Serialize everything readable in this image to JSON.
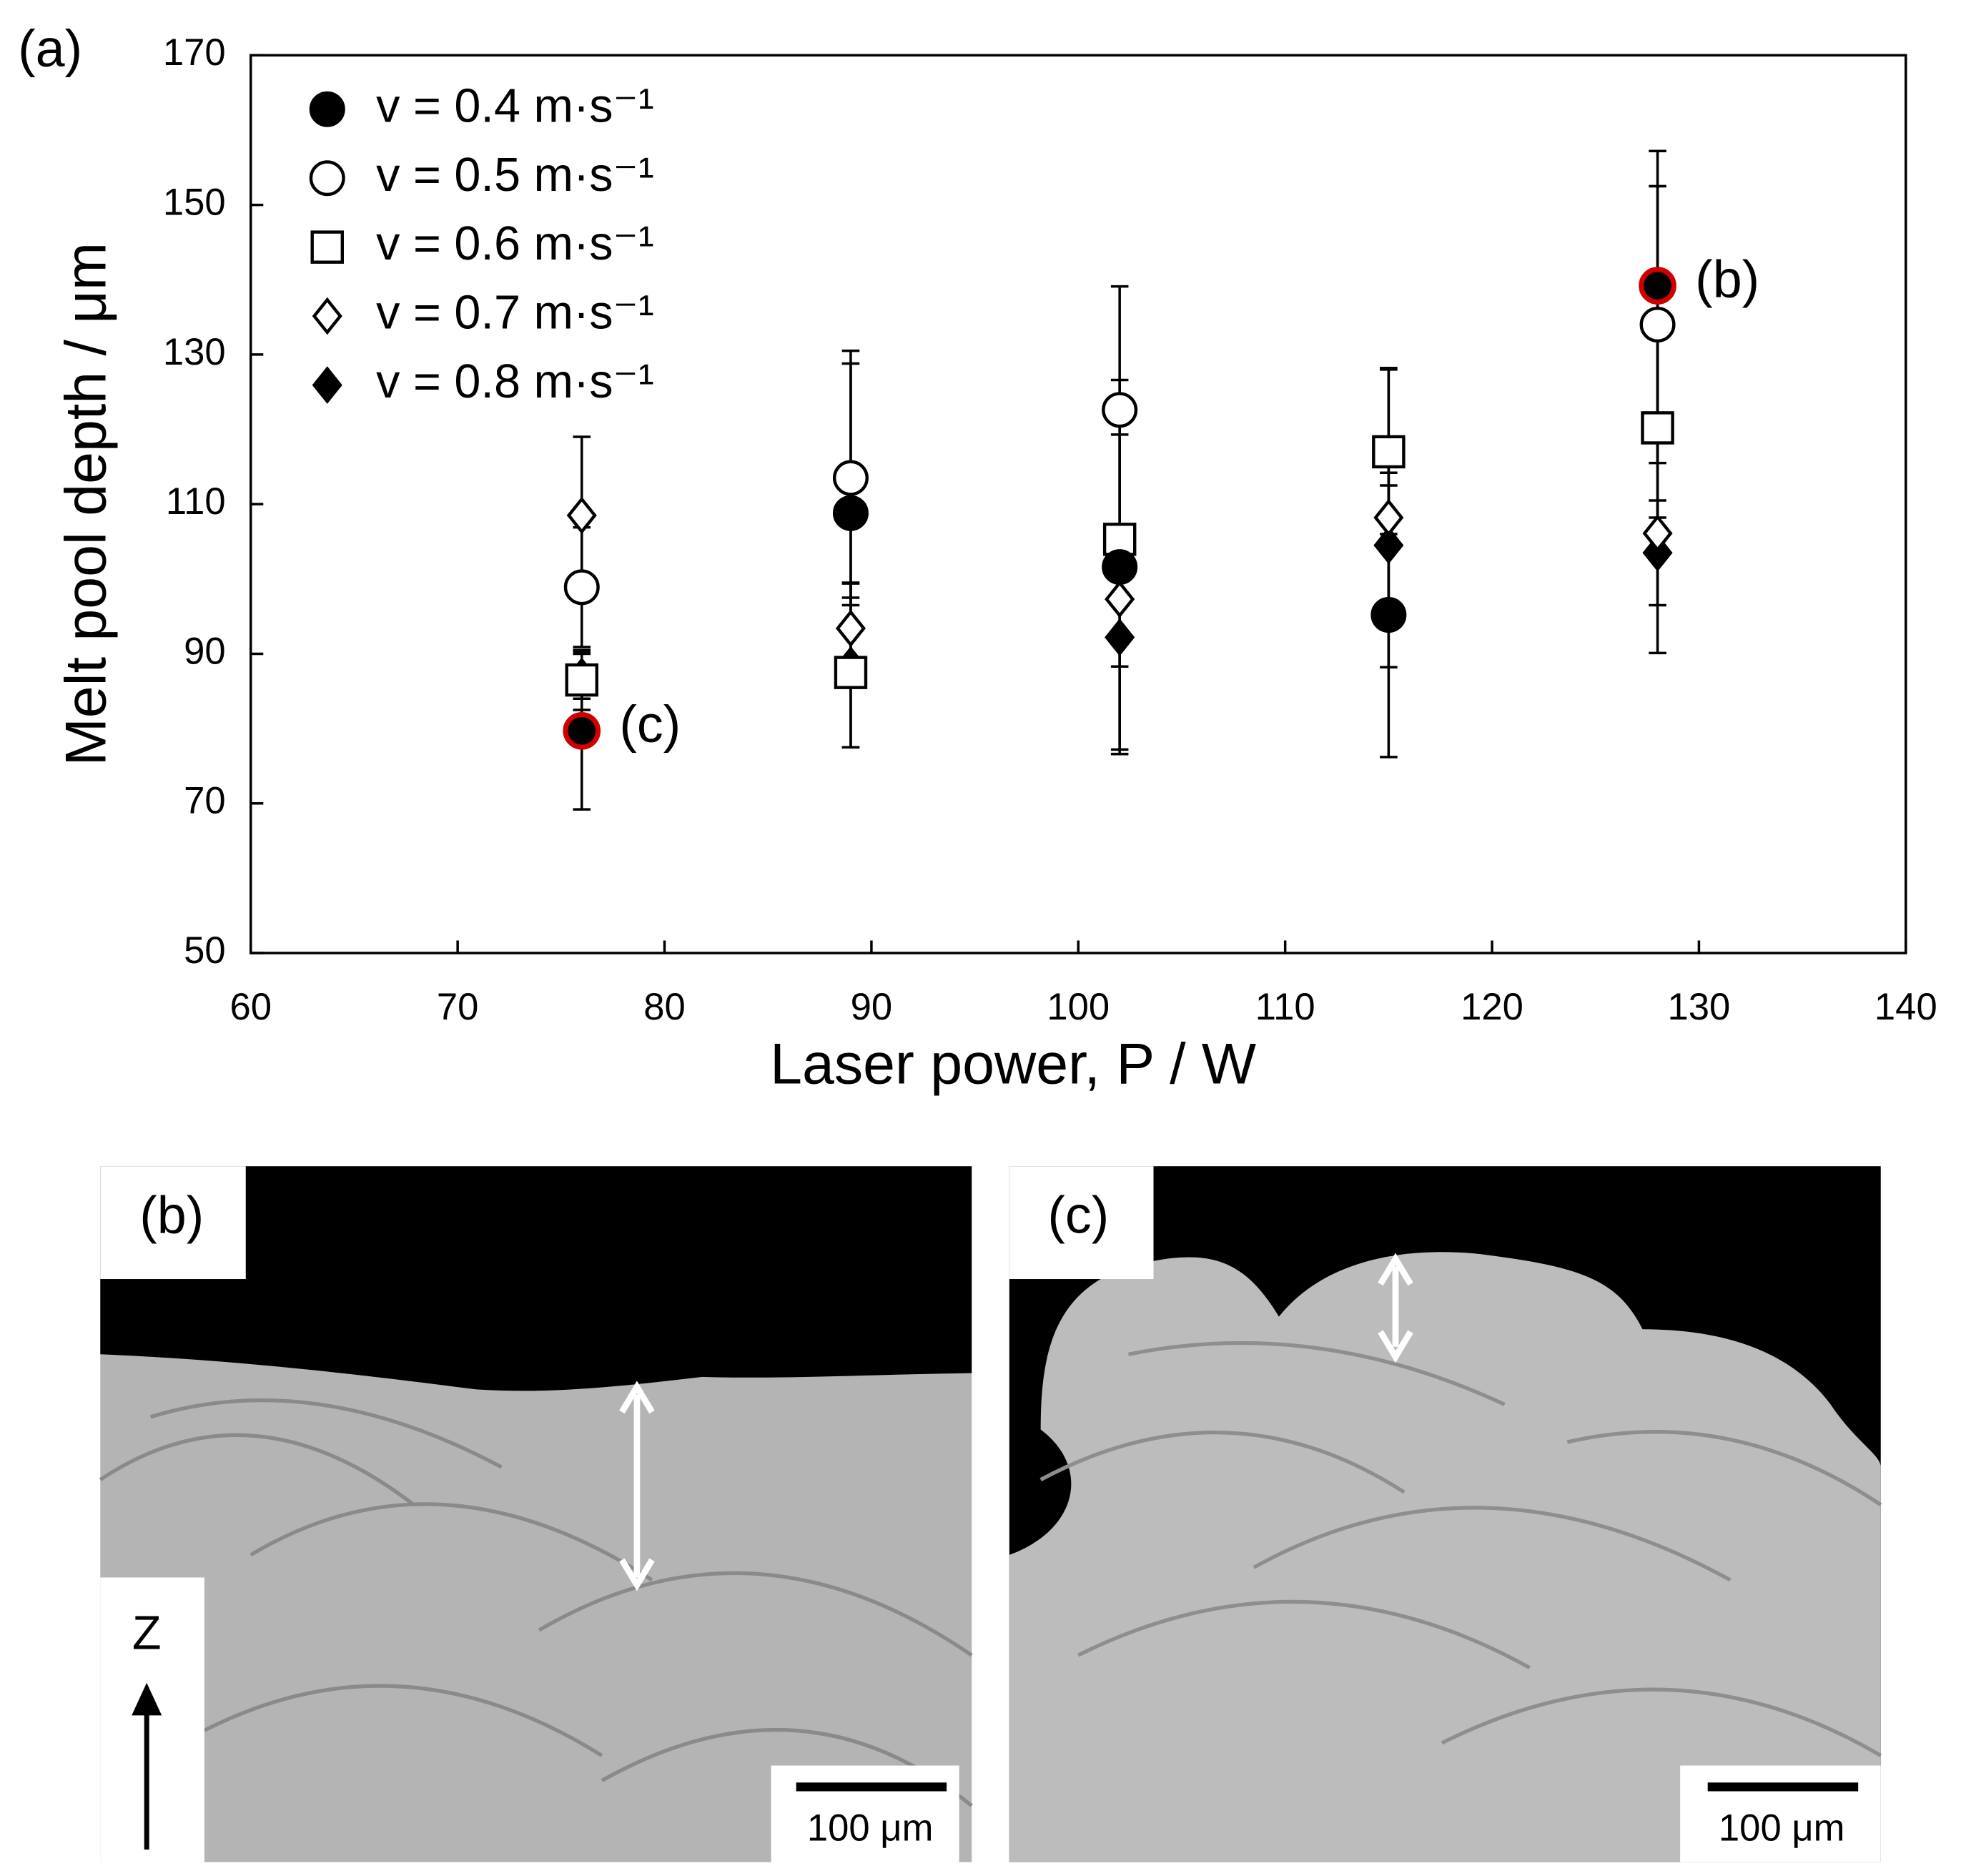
{
  "chart_data": {
    "type": "scatter",
    "panel_label": "(a)",
    "x_label": "Laser power, P / W",
    "y_label": "Melt pool depth / μm",
    "xlim": [
      60,
      140
    ],
    "xticks": [
      60,
      70,
      80,
      90,
      100,
      110,
      120,
      130,
      140
    ],
    "ylim": [
      50,
      170
    ],
    "yticks": [
      50,
      70,
      90,
      110,
      130,
      150,
      170
    ],
    "grid": false,
    "legend": "upper left",
    "x": [
      76,
      89,
      102,
      115,
      128
    ],
    "series": [
      {
        "name": "v = 0.4 m·s⁻¹",
        "marker": "circle",
        "filled": true,
        "values": [
          79.7,
          108.8,
          101.6,
          95.2,
          139.2
        ],
        "errors": [
          10.5,
          20,
          25,
          19,
          18
        ]
      },
      {
        "name": "v = 0.5 m·s⁻¹",
        "marker": "circle",
        "filled": false,
        "values": [
          98.9,
          113.5,
          122.6,
          null,
          134
        ],
        "errors": [
          8,
          17,
          16.5,
          null,
          18.5
        ]
      },
      {
        "name": "v = 0.6 m·s⁻¹",
        "marker": "square",
        "filled": false,
        "values": [
          86.5,
          87.5,
          105.3,
          117,
          120.2
        ],
        "errors": [
          4,
          10,
          14,
          11,
          12
        ]
      },
      {
        "name": "v = 0.7 m·s⁻¹",
        "marker": "diamond",
        "filled": false,
        "values": [
          108.5,
          93.4,
          97.3,
          108.2,
          106.1
        ],
        "errors": [
          10.5,
          6,
          9,
          20,
          16
        ]
      },
      {
        "name": "v = 0.8 m·s⁻¹",
        "marker": "diamond",
        "filled": true,
        "values": [
          87,
          88.5,
          92.2,
          104.5,
          103.5
        ],
        "errors": [
          3,
          11,
          15,
          8,
          7
        ]
      }
    ],
    "highlight_color": "#d00000",
    "annotations": [
      {
        "label": "(b)",
        "x": 128,
        "y": 139.2
      },
      {
        "label": "(c)",
        "x": 76,
        "y": 79.7
      }
    ]
  },
  "panels": [
    {
      "label": "(b)",
      "scale_bar": "100 μm"
    },
    {
      "label": "(c)",
      "scale_bar": "100 μm"
    }
  ],
  "build_axis": "Z"
}
